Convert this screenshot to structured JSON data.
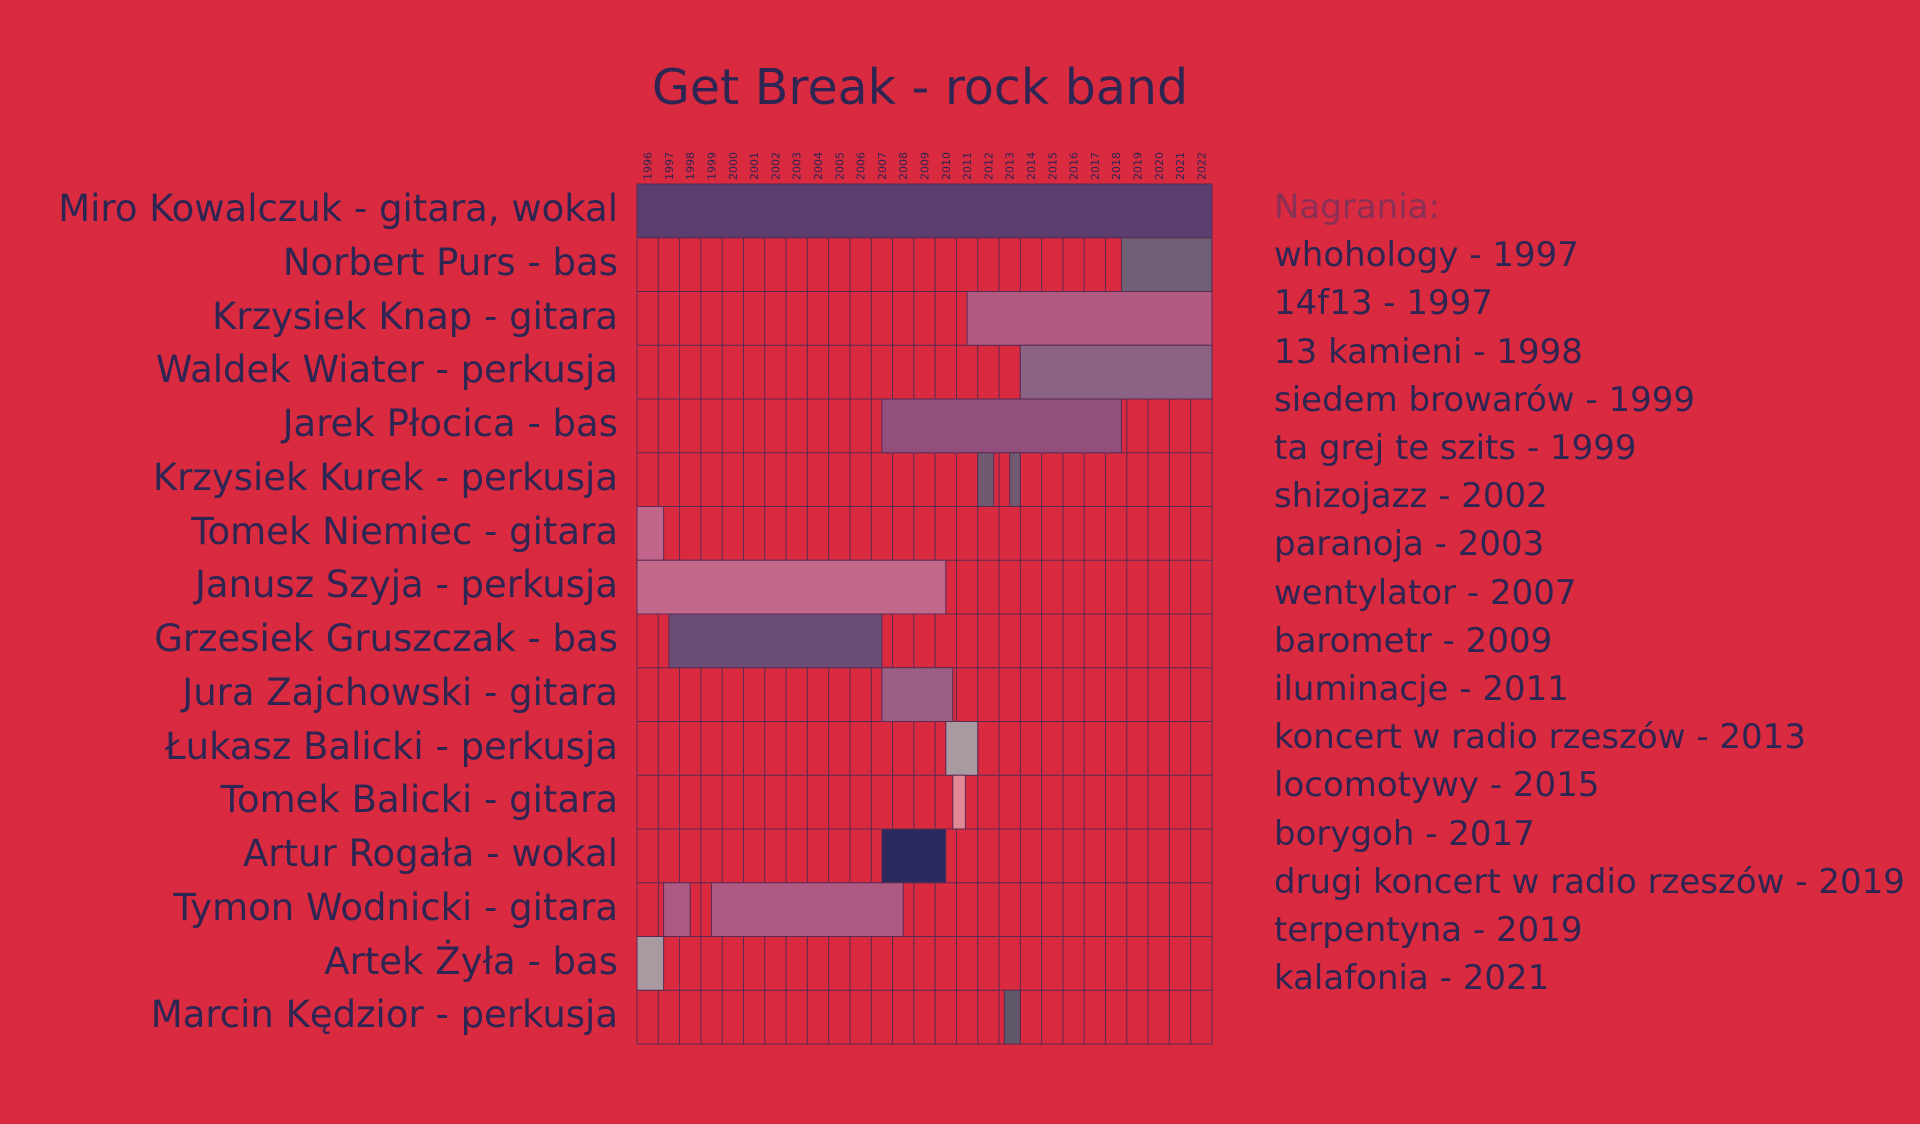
{
  "chart_data": {
    "type": "timeline",
    "title": "Get Break - rock band",
    "years": [
      "1996",
      "1997",
      "1998",
      "1999",
      "2000",
      "2001",
      "2002",
      "2003",
      "2004",
      "2005",
      "2006",
      "2007",
      "2008",
      "2009",
      "2010",
      "2011",
      "2012",
      "2013",
      "2014",
      "2015",
      "2016",
      "2017",
      "2018",
      "2019",
      "2020",
      "2021",
      "2022"
    ],
    "x_range": [
      1996.0,
      2023.0
    ],
    "members": [
      {
        "label": "Miro Kowalczuk - gitara, wokal",
        "spans": [
          [
            1996.0,
            2023.0
          ]
        ],
        "color": "#5c3d6f"
      },
      {
        "label": "Norbert Purs - bas",
        "spans": [
          [
            2018.75,
            2023.0
          ]
        ],
        "color": "#6f5f75"
      },
      {
        "label": "Krzysiek Knap - gitara",
        "spans": [
          [
            2011.5,
            2023.0
          ]
        ],
        "color": "#b05a82"
      },
      {
        "label": "Waldek Wiater - perkusja",
        "spans": [
          [
            2014.0,
            2023.0
          ]
        ],
        "color": "#8c6384"
      },
      {
        "label": "Jarek Płocica - bas",
        "spans": [
          [
            2007.5,
            2018.75
          ]
        ],
        "color": "#924e7d"
      },
      {
        "label": "Krzysiek Kurek - perkusja",
        "spans": [
          [
            2012.0,
            2012.75
          ],
          [
            2013.5,
            2014.0
          ]
        ],
        "color": "#6f5a70"
      },
      {
        "label": "Tomek Niemiec - gitara",
        "spans": [
          [
            1996.0,
            1997.25
          ]
        ],
        "color": "#c1668a"
      },
      {
        "label": "Janusz Szyja - perkusja",
        "spans": [
          [
            1996.0,
            2010.5
          ]
        ],
        "color": "#c2688b"
      },
      {
        "label": "Grzesiek Gruszczak - bas",
        "spans": [
          [
            1997.5,
            2007.5
          ]
        ],
        "color": "#6a4c74"
      },
      {
        "label": "Jura Zajchowski - gitara",
        "spans": [
          [
            2007.5,
            2010.83
          ]
        ],
        "color": "#9a5f83"
      },
      {
        "label": "Łukasz Balicki - perkusja",
        "spans": [
          [
            2010.5,
            2012.0
          ]
        ],
        "color": "#a89aa0"
      },
      {
        "label": "Tomek Balicki - gitara",
        "spans": [
          [
            2010.83,
            2011.42
          ]
        ],
        "color": "#e08894"
      },
      {
        "label": "Artur Rogała - wokal",
        "spans": [
          [
            2007.5,
            2010.5
          ]
        ],
        "color": "#2a2a5e"
      },
      {
        "label": "Tymon Wodnicki - gitara",
        "spans": [
          [
            1997.25,
            1998.5
          ],
          [
            1999.5,
            2008.5
          ]
        ],
        "color": "#ac5a82"
      },
      {
        "label": "Artek Żyła - bas",
        "spans": [
          [
            1996.0,
            1997.25
          ]
        ],
        "color": "#a89aa0"
      },
      {
        "label": "Marcin Kędzior - perkusja",
        "spans": [
          [
            2013.25,
            2014.0
          ]
        ],
        "color": "#605868"
      }
    ],
    "grid": true
  },
  "recordings": {
    "heading": "Nagrania:",
    "items": [
      "whohology - 1997",
      "14f13 - 1997",
      "13 kamieni - 1998",
      "siedem browarów - 1999",
      "ta grej te szits - 1999",
      "shizojazz - 2002",
      "paranoja - 2003",
      "wentylator - 2007",
      "barometr - 2009",
      "iluminacje - 2011",
      "koncert w radio rzeszów - 2013",
      "locomotywy - 2015",
      "borygoh - 2017",
      "drugi koncert w radio rzeszów - 2019",
      "terpentyna - 2019",
      "kalafonia - 2021"
    ]
  },
  "colors": {
    "background": "#d92a3f",
    "grid_line": "#5a2a52",
    "text": "#2e2553",
    "heading": "#8a3056"
  }
}
